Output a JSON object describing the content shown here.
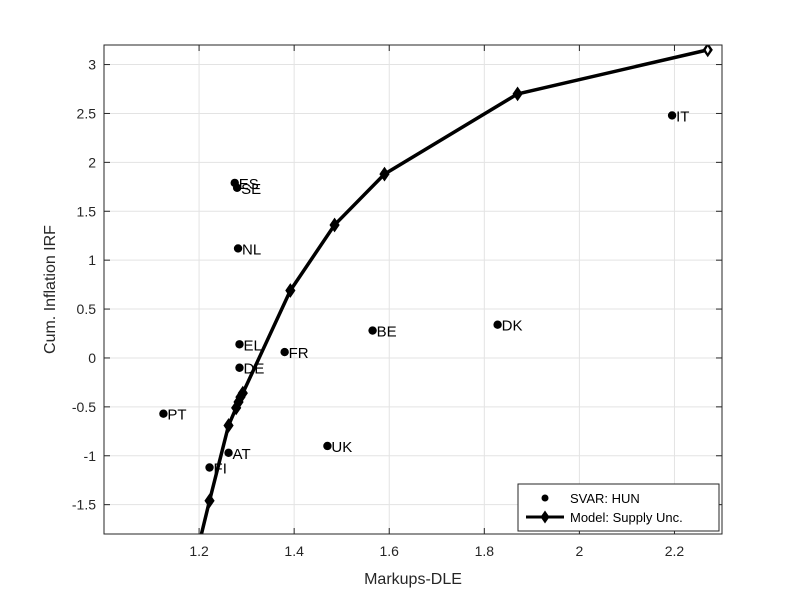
{
  "chart_data": {
    "type": "scatter",
    "xlabel": "Markups-DLE",
    "ylabel": "Cum. Inflation IRF",
    "xlim": [
      1.0,
      2.3
    ],
    "ylim": [
      -1.8,
      3.2
    ],
    "x_ticks": [
      1.2,
      1.4,
      1.6,
      1.8,
      2,
      2.2
    ],
    "x_tick_labels": [
      "1.2",
      "1.4",
      "1.6",
      "1.8",
      "2",
      "2.2"
    ],
    "y_ticks": [
      -1.5,
      -1,
      -0.5,
      0,
      0.5,
      1,
      1.5,
      2,
      2.5,
      3
    ],
    "y_tick_labels": [
      "-1.5",
      "-1",
      "-0.5",
      "0",
      "0.5",
      "1",
      "1.5",
      "2",
      "2.5",
      "3"
    ],
    "grid": true,
    "legend_position": "bottom-right",
    "series": [
      {
        "name": "SVAR: HUN",
        "kind": "scatter",
        "color": "#000000",
        "points": [
          {
            "label": "IT",
            "x": 2.195,
            "y": 2.48
          },
          {
            "label": "ES",
            "x": 1.275,
            "y": 1.79
          },
          {
            "label": "SE",
            "x": 1.28,
            "y": 1.74
          },
          {
            "label": "NL",
            "x": 1.282,
            "y": 1.12
          },
          {
            "label": "DK",
            "x": 1.828,
            "y": 0.34
          },
          {
            "label": "BE",
            "x": 1.565,
            "y": 0.28
          },
          {
            "label": "EL",
            "x": 1.285,
            "y": 0.14
          },
          {
            "label": "FR",
            "x": 1.38,
            "y": 0.06
          },
          {
            "label": "DE",
            "x": 1.285,
            "y": -0.1
          },
          {
            "label": "PT",
            "x": 1.125,
            "y": -0.57
          },
          {
            "label": "UK",
            "x": 1.47,
            "y": -0.9
          },
          {
            "label": "AT",
            "x": 1.262,
            "y": -0.97
          },
          {
            "label": "FI",
            "x": 1.222,
            "y": -1.12
          }
        ]
      },
      {
        "name": "Model: Supply Unc.",
        "kind": "line",
        "color": "#000000",
        "x": [
          1.205,
          1.222,
          1.262,
          1.278,
          1.283,
          1.287,
          1.292,
          1.392,
          1.485,
          1.59,
          1.87,
          2.27
        ],
        "y": [
          -1.8,
          -1.46,
          -0.69,
          -0.51,
          -0.45,
          -0.4,
          -0.36,
          0.69,
          1.36,
          1.88,
          2.7,
          3.15
        ]
      }
    ]
  }
}
